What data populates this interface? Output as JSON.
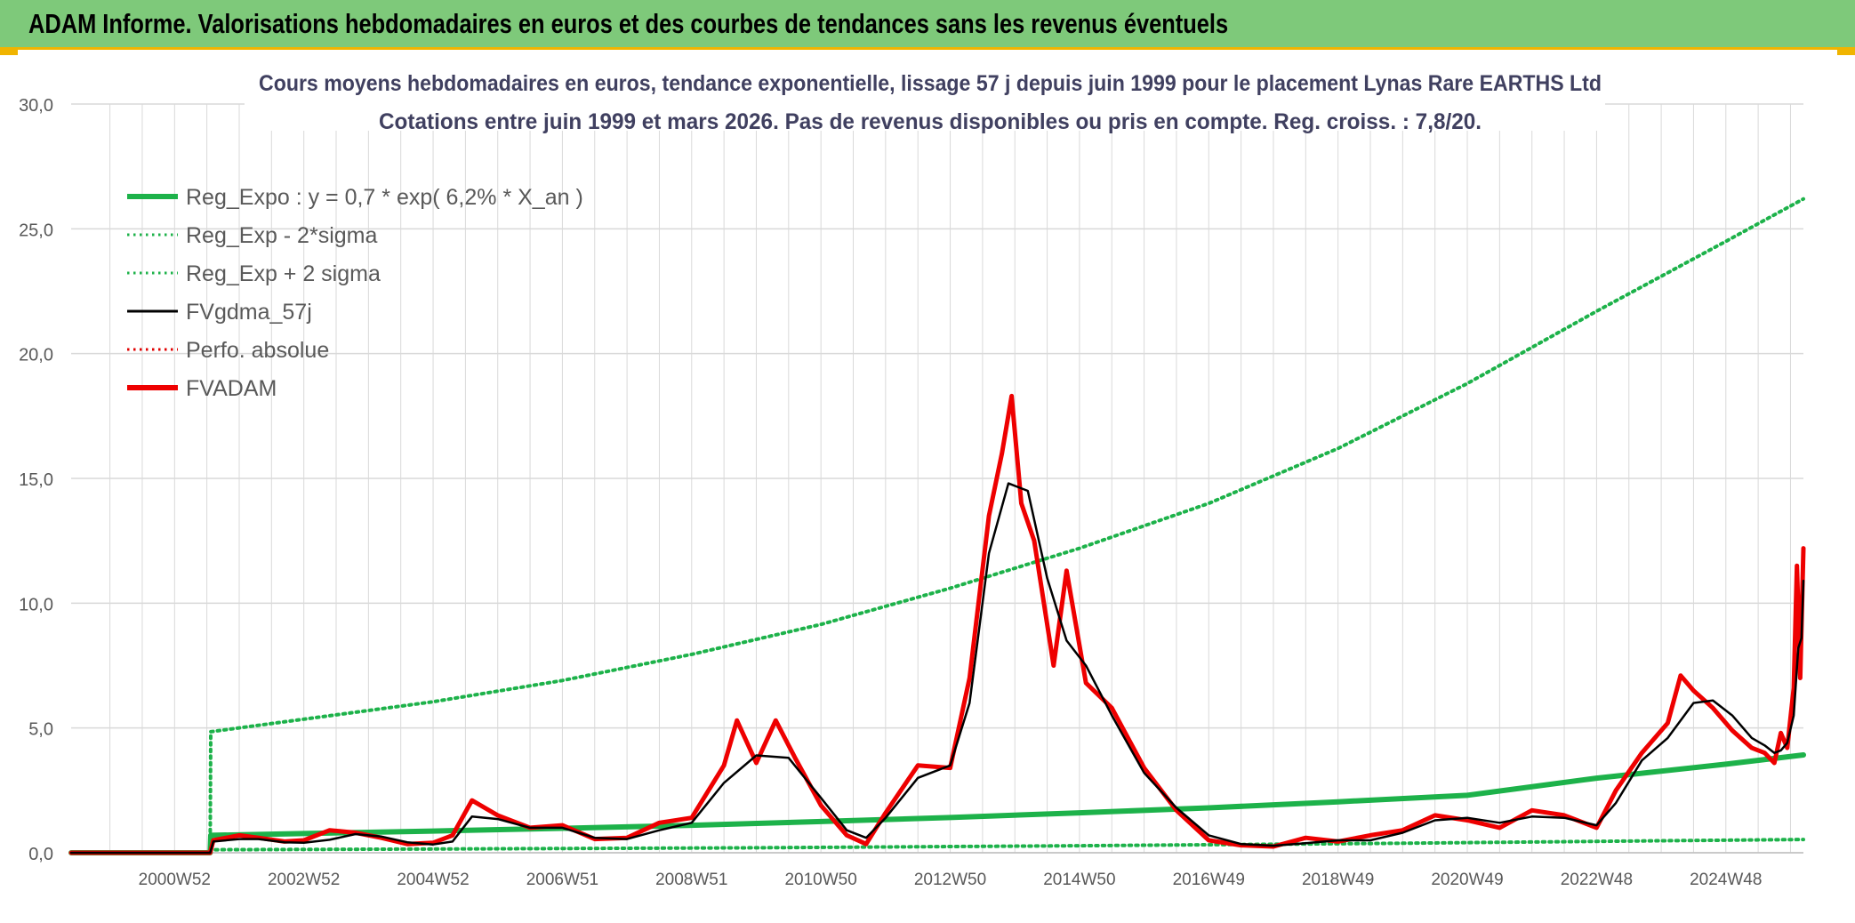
{
  "banner": {
    "title": "ADAM Informe. Valorisations hebdomadaires en euros et des courbes de tendances sans les revenus éventuels"
  },
  "colors": {
    "banner_bg": "#7ec97a",
    "banner_border": "#f0b400",
    "reg_expo": "#1db24a",
    "sigma": "#1db24a",
    "fvgdma": "#000000",
    "perfo": "#e00000",
    "fvadam": "#ee0000",
    "grid": "#d9d9d9"
  },
  "chart_data": {
    "type": "line",
    "title": "Cours moyens hebdomadaires en euros, tendance exponentielle, lissage 57 j depuis juin 1999 pour le placement Lynas Rare EARTHS Ltd",
    "subtitle": "Cotations entre juin 1999 et mars 2026. Pas de revenus disponibles ou pris en compte. Reg. croiss. : 7,8/20.",
    "xlabel": "",
    "ylabel": "",
    "ylim": [
      0,
      30
    ],
    "xlim": [
      1999.4,
      2026.2
    ],
    "yticks": [
      "0,0",
      "5,0",
      "10,0",
      "15,0",
      "20,0",
      "25,0",
      "30,0"
    ],
    "xticks": [
      {
        "label": "2000W52",
        "x": 2001.0
      },
      {
        "label": "2002W52",
        "x": 2003.0
      },
      {
        "label": "2004W52",
        "x": 2005.0
      },
      {
        "label": "2006W51",
        "x": 2007.0
      },
      {
        "label": "2008W51",
        "x": 2009.0
      },
      {
        "label": "2010W50",
        "x": 2011.0
      },
      {
        "label": "2012W50",
        "x": 2013.0
      },
      {
        "label": "2014W50",
        "x": 2015.0
      },
      {
        "label": "2016W49",
        "x": 2017.0
      },
      {
        "label": "2018W49",
        "x": 2019.0
      },
      {
        "label": "2020W49",
        "x": 2021.0
      },
      {
        "label": "2022W48",
        "x": 2023.0
      },
      {
        "label": "2024W48",
        "x": 2025.0
      }
    ],
    "grid": true,
    "legend_position": "top-left",
    "series": [
      {
        "name": "Reg_Expo : y = 0,7 * exp( 6,2% *  X_an )",
        "style": "solid-thick",
        "color": "#1db24a",
        "points": [
          [
            1999.4,
            0.0
          ],
          [
            2001.55,
            0.0
          ],
          [
            2001.56,
            0.7
          ],
          [
            2003,
            0.77
          ],
          [
            2005,
            0.87
          ],
          [
            2007,
            0.98
          ],
          [
            2009,
            1.1
          ],
          [
            2011,
            1.25
          ],
          [
            2013,
            1.41
          ],
          [
            2015,
            1.6
          ],
          [
            2017,
            1.8
          ],
          [
            2019,
            2.04
          ],
          [
            2021,
            2.3
          ],
          [
            2023,
            2.99
          ],
          [
            2025,
            3.55
          ],
          [
            2026.2,
            3.92
          ]
        ]
      },
      {
        "name": "Reg_Exp - 2*sigma",
        "style": "dotted",
        "color": "#1db24a",
        "points": [
          [
            1999.4,
            0.0
          ],
          [
            2001.55,
            0.0
          ],
          [
            2001.56,
            0.12
          ],
          [
            2005,
            0.15
          ],
          [
            2010,
            0.2
          ],
          [
            2015,
            0.28
          ],
          [
            2020,
            0.38
          ],
          [
            2024,
            0.48
          ],
          [
            2026.2,
            0.53
          ]
        ]
      },
      {
        "name": "Reg_Exp + 2 sigma",
        "style": "dotted",
        "color": "#1db24a",
        "points": [
          [
            1999.4,
            0.0
          ],
          [
            2001.55,
            0.0
          ],
          [
            2001.56,
            4.85
          ],
          [
            2003,
            5.35
          ],
          [
            2005,
            6.05
          ],
          [
            2007,
            6.9
          ],
          [
            2009,
            7.95
          ],
          [
            2011,
            9.15
          ],
          [
            2013,
            10.6
          ],
          [
            2015,
            12.2
          ],
          [
            2017,
            14.0
          ],
          [
            2019,
            16.2
          ],
          [
            2021,
            18.8
          ],
          [
            2023,
            21.7
          ],
          [
            2024,
            23.1
          ],
          [
            2025,
            24.5
          ],
          [
            2026.2,
            26.2
          ]
        ]
      },
      {
        "name": "FVgdma_57j",
        "style": "solid",
        "color": "#000000",
        "points": [
          [
            1999.4,
            0.0
          ],
          [
            2001.55,
            0.0
          ],
          [
            2001.6,
            0.45
          ],
          [
            2002,
            0.55
          ],
          [
            2002.3,
            0.55
          ],
          [
            2002.7,
            0.42
          ],
          [
            2003,
            0.4
          ],
          [
            2003.4,
            0.52
          ],
          [
            2003.8,
            0.75
          ],
          [
            2004.2,
            0.65
          ],
          [
            2004.6,
            0.42
          ],
          [
            2005,
            0.33
          ],
          [
            2005.3,
            0.45
          ],
          [
            2005.6,
            1.45
          ],
          [
            2006,
            1.35
          ],
          [
            2006.5,
            1.0
          ],
          [
            2007,
            1.0
          ],
          [
            2007.5,
            0.6
          ],
          [
            2008,
            0.55
          ],
          [
            2008.5,
            0.9
          ],
          [
            2009,
            1.2
          ],
          [
            2009.5,
            2.8
          ],
          [
            2010,
            3.9
          ],
          [
            2010.5,
            3.8
          ],
          [
            2011,
            2.2
          ],
          [
            2011.4,
            0.9
          ],
          [
            2011.7,
            0.6
          ],
          [
            2012,
            1.4
          ],
          [
            2012.5,
            3.0
          ],
          [
            2013,
            3.5
          ],
          [
            2013.3,
            6.0
          ],
          [
            2013.6,
            12.0
          ],
          [
            2013.9,
            14.8
          ],
          [
            2014.2,
            14.5
          ],
          [
            2014.5,
            11.0
          ],
          [
            2014.8,
            8.5
          ],
          [
            2015.1,
            7.5
          ],
          [
            2015.5,
            5.5
          ],
          [
            2016,
            3.2
          ],
          [
            2016.5,
            1.8
          ],
          [
            2017,
            0.7
          ],
          [
            2017.5,
            0.35
          ],
          [
            2018,
            0.28
          ],
          [
            2018.5,
            0.38
          ],
          [
            2019,
            0.5
          ],
          [
            2019.5,
            0.5
          ],
          [
            2020,
            0.8
          ],
          [
            2020.5,
            1.3
          ],
          [
            2021,
            1.4
          ],
          [
            2021.5,
            1.2
          ],
          [
            2022,
            1.45
          ],
          [
            2022.5,
            1.4
          ],
          [
            2023,
            1.1
          ],
          [
            2023.3,
            2.0
          ],
          [
            2023.7,
            3.7
          ],
          [
            2024.1,
            4.6
          ],
          [
            2024.5,
            6.0
          ],
          [
            2024.8,
            6.1
          ],
          [
            2025.1,
            5.5
          ],
          [
            2025.4,
            4.6
          ],
          [
            2025.6,
            4.3
          ],
          [
            2025.75,
            4.0
          ],
          [
            2025.85,
            4.1
          ],
          [
            2025.95,
            4.4
          ],
          [
            2026.05,
            5.5
          ],
          [
            2026.12,
            8.2
          ],
          [
            2026.17,
            8.6
          ],
          [
            2026.2,
            10.9
          ]
        ]
      },
      {
        "name": "Perfo. absolue",
        "style": "dotted",
        "color": "#e00000",
        "points": []
      },
      {
        "name": "FVADAM",
        "style": "solid-thick",
        "color": "#ee0000",
        "points": [
          [
            1999.4,
            0.0
          ],
          [
            2001.55,
            0.0
          ],
          [
            2001.6,
            0.5
          ],
          [
            2002,
            0.7
          ],
          [
            2002.3,
            0.6
          ],
          [
            2002.7,
            0.45
          ],
          [
            2003,
            0.5
          ],
          [
            2003.4,
            0.9
          ],
          [
            2003.8,
            0.8
          ],
          [
            2004.2,
            0.6
          ],
          [
            2004.6,
            0.35
          ],
          [
            2005,
            0.4
          ],
          [
            2005.3,
            0.7
          ],
          [
            2005.6,
            2.1
          ],
          [
            2006,
            1.5
          ],
          [
            2006.5,
            1.0
          ],
          [
            2007,
            1.1
          ],
          [
            2007.5,
            0.55
          ],
          [
            2008,
            0.6
          ],
          [
            2008.5,
            1.2
          ],
          [
            2009,
            1.4
          ],
          [
            2009.5,
            3.5
          ],
          [
            2009.7,
            5.3
          ],
          [
            2010,
            3.6
          ],
          [
            2010.3,
            5.3
          ],
          [
            2010.6,
            3.8
          ],
          [
            2011,
            1.9
          ],
          [
            2011.4,
            0.7
          ],
          [
            2011.7,
            0.35
          ],
          [
            2012,
            1.6
          ],
          [
            2012.5,
            3.5
          ],
          [
            2013,
            3.4
          ],
          [
            2013.3,
            7.0
          ],
          [
            2013.6,
            13.5
          ],
          [
            2013.8,
            16.0
          ],
          [
            2013.95,
            18.3
          ],
          [
            2014.1,
            14.0
          ],
          [
            2014.3,
            12.5
          ],
          [
            2014.6,
            7.5
          ],
          [
            2014.8,
            11.3
          ],
          [
            2015.1,
            6.8
          ],
          [
            2015.5,
            5.8
          ],
          [
            2016,
            3.4
          ],
          [
            2016.5,
            1.7
          ],
          [
            2017,
            0.5
          ],
          [
            2017.5,
            0.3
          ],
          [
            2018,
            0.25
          ],
          [
            2018.5,
            0.6
          ],
          [
            2019,
            0.45
          ],
          [
            2019.5,
            0.7
          ],
          [
            2020,
            0.9
          ],
          [
            2020.5,
            1.5
          ],
          [
            2021,
            1.3
          ],
          [
            2021.5,
            1.0
          ],
          [
            2022,
            1.7
          ],
          [
            2022.5,
            1.5
          ],
          [
            2023,
            1.0
          ],
          [
            2023.3,
            2.5
          ],
          [
            2023.7,
            4.0
          ],
          [
            2024.1,
            5.2
          ],
          [
            2024.3,
            7.1
          ],
          [
            2024.5,
            6.5
          ],
          [
            2024.8,
            5.8
          ],
          [
            2025.1,
            4.9
          ],
          [
            2025.4,
            4.2
          ],
          [
            2025.6,
            4.0
          ],
          [
            2025.75,
            3.6
          ],
          [
            2025.85,
            4.8
          ],
          [
            2025.95,
            4.2
          ],
          [
            2026.05,
            6.6
          ],
          [
            2026.1,
            11.5
          ],
          [
            2026.15,
            7.0
          ],
          [
            2026.2,
            12.2
          ]
        ]
      }
    ]
  }
}
